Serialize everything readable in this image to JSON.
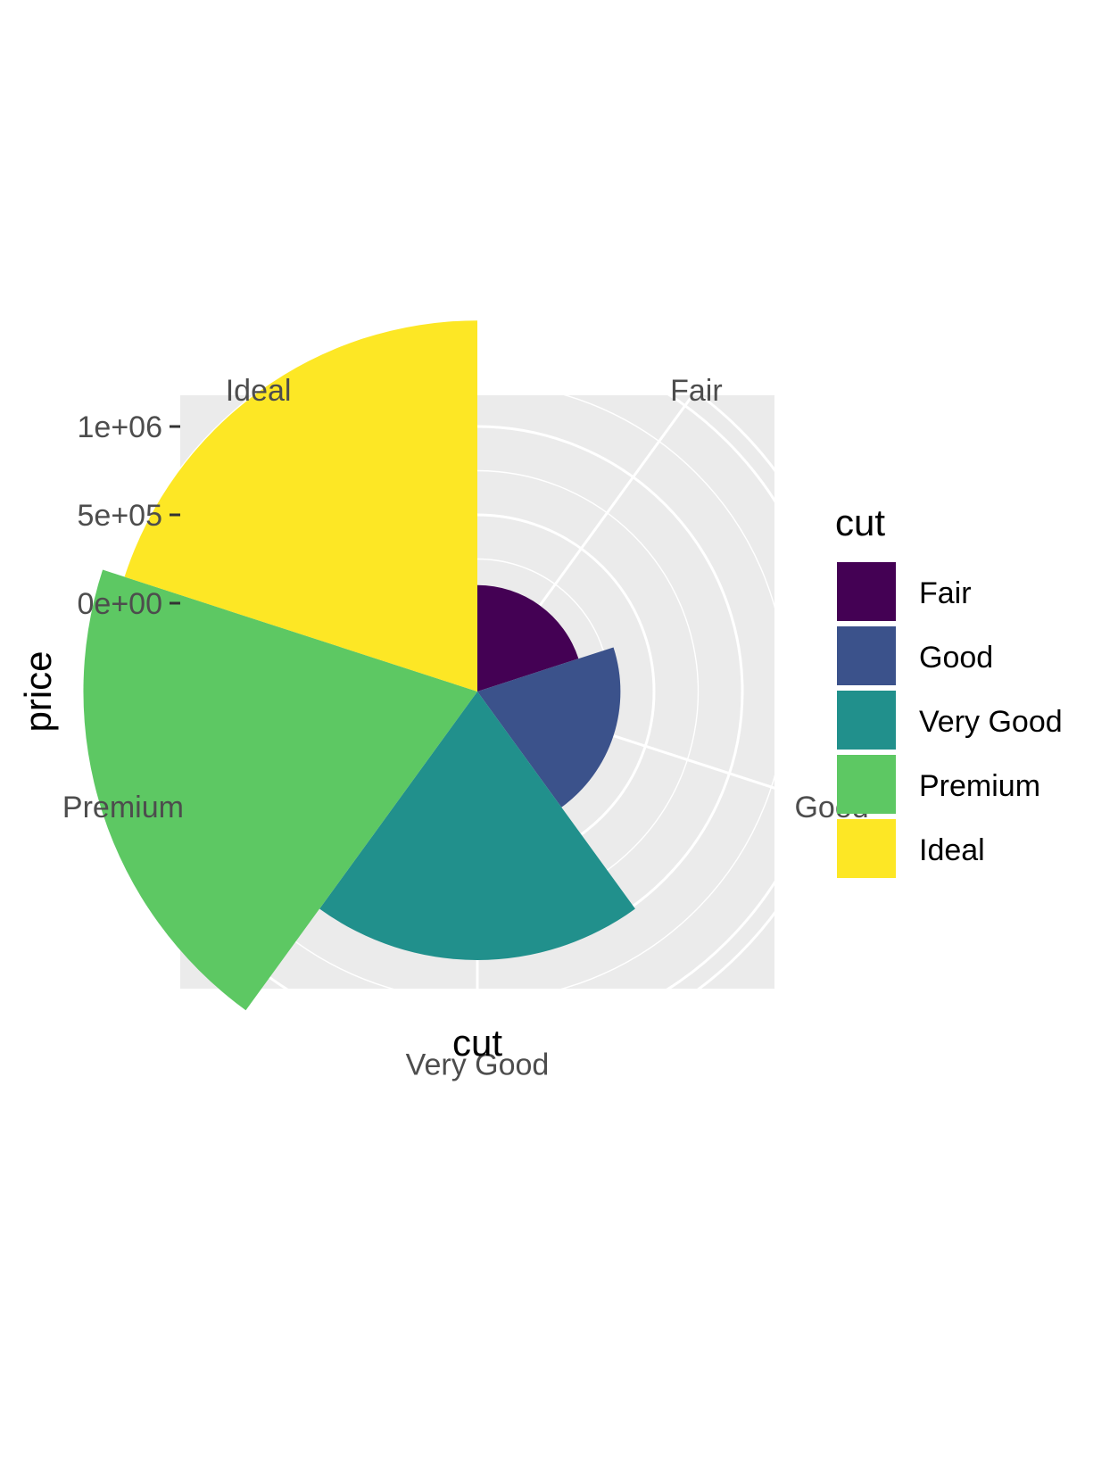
{
  "chart_data": {
    "type": "bar",
    "coord": "polar",
    "x": "cut",
    "y": "price",
    "xlabel": "cut",
    "ylabel": "price",
    "categories": [
      "Fair",
      "Good",
      "Very Good",
      "Premium",
      "Ideal"
    ],
    "values": [
      102000,
      310000,
      1020000,
      1730000,
      1600000
    ],
    "colors": [
      "#440154",
      "#3b528b",
      "#21908c",
      "#5dc863",
      "#fde725"
    ],
    "yticks": [
      {
        "value": 0,
        "label": "0e+00"
      },
      {
        "value": 500000,
        "label": "5e+05"
      },
      {
        "value": 1000000,
        "label": "1e+06"
      }
    ],
    "ylim": [
      -500000,
      1750000
    ],
    "grid": true,
    "panel_background": "#ebebeb",
    "gridline_color": "#ffffff",
    "legend": {
      "title": "cut",
      "position": "right",
      "items": [
        "Fair",
        "Good",
        "Very Good",
        "Premium",
        "Ideal"
      ]
    }
  }
}
